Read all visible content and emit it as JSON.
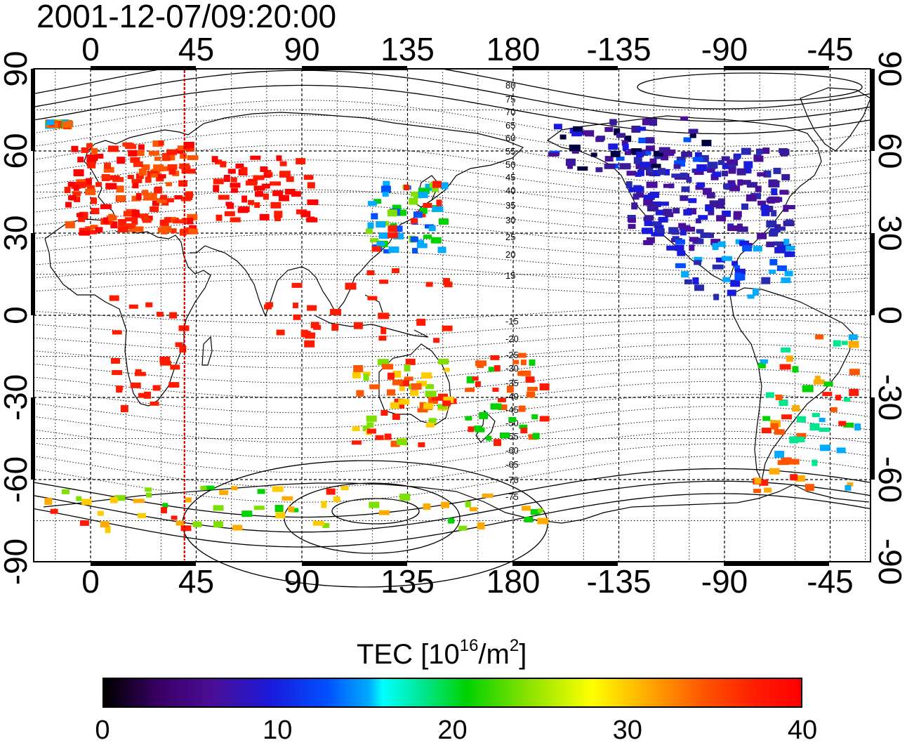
{
  "title": "2001-12-07/09:20:00",
  "longitude_ticks": [
    "0",
    "45",
    "90",
    "135",
    "180",
    "-135",
    "-90",
    "-45"
  ],
  "latitude_ticks": [
    "90",
    "60",
    "30",
    "0",
    "-30",
    "-60",
    "-90"
  ],
  "contour_labels": [
    "80",
    "75",
    "70",
    "65",
    "60",
    "55",
    "50",
    "45",
    "40",
    "35",
    "30",
    "25",
    "20",
    "15",
    "-15",
    "-20",
    "-25",
    "-30",
    "-35",
    "-40",
    "-45",
    "-50",
    "-55",
    "-60",
    "-65",
    "-70",
    "-75"
  ],
  "colorbar": {
    "label_main": "TEC  [10",
    "label_exp1": "16",
    "label_mid": "/m",
    "label_exp2": "2",
    "label_end": "]",
    "ticks": [
      "0",
      "10",
      "20",
      "30",
      "40"
    ],
    "min": 0,
    "max": 40
  },
  "terminator_longitude": 40,
  "colors": {
    "terminator": "#d40000",
    "high_tec": "#ff1a00",
    "low_tec": "#3a1a9a"
  }
}
